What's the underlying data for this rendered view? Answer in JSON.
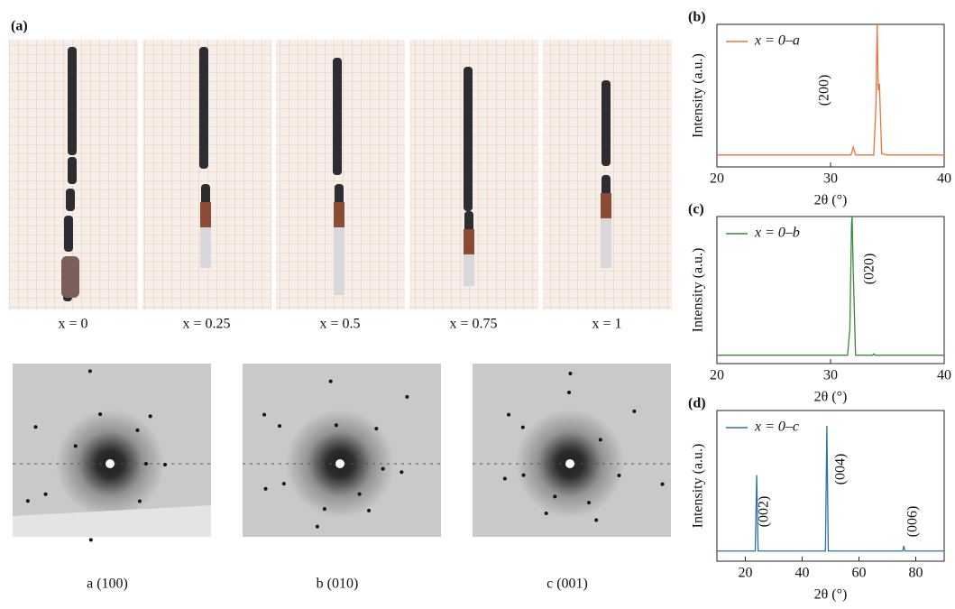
{
  "panel_a_label": "(a)",
  "photo_captions": [
    "x = 0",
    "x = 0.25",
    "x = 0.5",
    "x = 0.75",
    "x = 1"
  ],
  "diffraction_captions": [
    "a (100)",
    "b (010)",
    "c (001)"
  ],
  "chart_data": [
    {
      "type": "line",
      "panel_label": "(b)",
      "x_label": "2θ (°)",
      "y_label": "Intensity (a.u.)",
      "xlim": [
        20,
        40
      ],
      "xticks": [
        20,
        30,
        40
      ],
      "ylim": [
        -8,
        100
      ],
      "annotations": [
        "(200)"
      ],
      "series": [
        {
          "name": "x = 0–a",
          "color": "#e8743b",
          "x": [
            20,
            25,
            30,
            31.8,
            32,
            32.2,
            33.8,
            34.0,
            34.1,
            34.2,
            34.3,
            34.5,
            35,
            40
          ],
          "values": [
            1,
            1,
            1,
            1,
            7,
            1,
            1,
            40,
            100,
            50,
            55,
            2,
            1,
            1
          ]
        }
      ]
    },
    {
      "type": "line",
      "panel_label": "(c)",
      "x_label": "2θ (°)",
      "y_label": "Intensity (a.u.)",
      "xlim": [
        20,
        40
      ],
      "xticks": [
        20,
        30,
        40
      ],
      "ylim": [
        -5,
        100
      ],
      "annotations": [
        "(020)"
      ],
      "series": [
        {
          "name": "x = 0–b",
          "color": "#3a8a3a",
          "x": [
            20,
            25,
            30,
            31.5,
            31.7,
            31.85,
            31.9,
            32.0,
            32.2,
            33.7,
            33.8,
            33.9,
            40
          ],
          "values": [
            1,
            1,
            1,
            1,
            20,
            95,
            100,
            60,
            1,
            1,
            2,
            1,
            1
          ]
        }
      ]
    },
    {
      "type": "line",
      "panel_label": "(d)",
      "x_label": "2θ (°)",
      "y_label": "Intensity (a.u.)",
      "xlim": [
        10,
        90
      ],
      "xticks": [
        20,
        40,
        60,
        80
      ],
      "ylim": [
        -7,
        112
      ],
      "annotations": [
        "(002)",
        "(004)",
        "(006)"
      ],
      "series": [
        {
          "name": "x = 0–c",
          "color": "#2f6fb0",
          "x": [
            10,
            20,
            23.5,
            24.0,
            24.5,
            30,
            40,
            48.2,
            48.7,
            49.2,
            60,
            75.4,
            75.8,
            76.2,
            90
          ],
          "values": [
            1,
            1,
            1,
            61,
            1,
            1,
            1,
            1,
            100,
            1,
            1,
            1,
            5,
            1,
            1
          ]
        }
      ]
    }
  ]
}
